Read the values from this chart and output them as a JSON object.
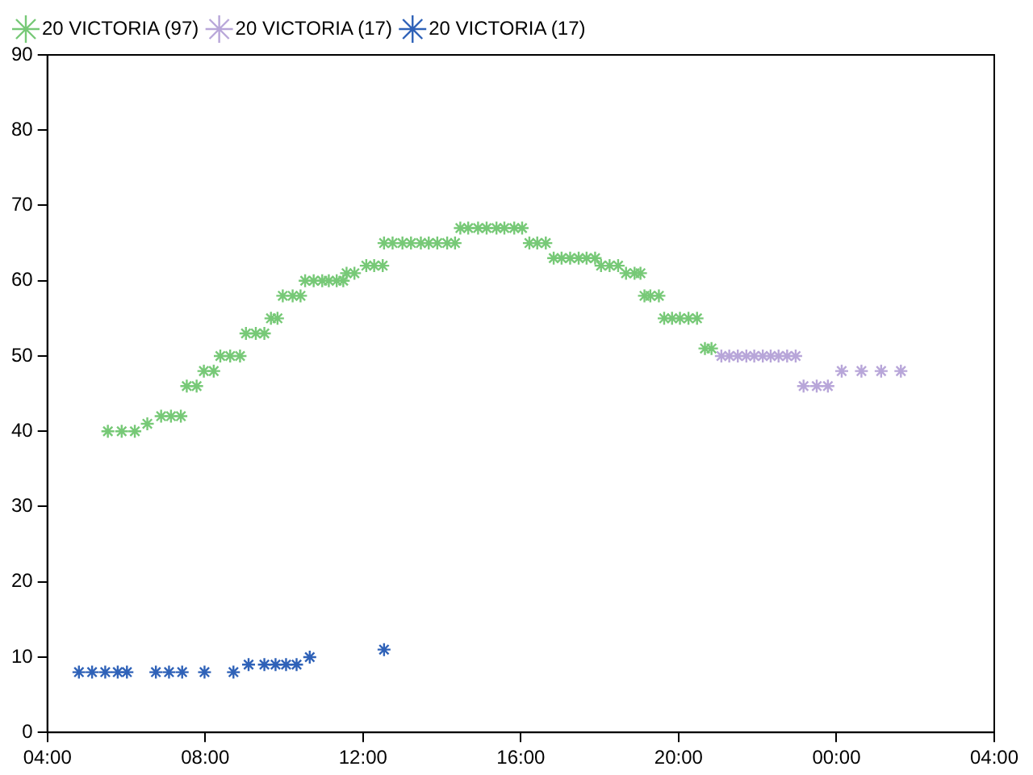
{
  "chart_data": {
    "type": "scatter",
    "marker": "cross",
    "legend": "top left",
    "grid": false,
    "xlim": [
      "--01-01T04:00",
      "--01-02T04:00"
    ],
    "xticks": [
      {
        "value": "--01-01T04:00",
        "label": "04:00"
      },
      {
        "value": "--01-01T08:00",
        "label": "08:00"
      },
      {
        "value": "--01-01T12:00",
        "label": "12:00"
      },
      {
        "value": "--01-01T16:00",
        "label": "16:00"
      },
      {
        "value": "--01-01T20:00",
        "label": "20:00"
      },
      {
        "value": "--01-02T00:00",
        "label": "00:00"
      },
      {
        "value": "--01-02T04:00",
        "label": "04:00"
      }
    ],
    "ylim": [
      0,
      90
    ],
    "yticks": [
      0,
      10,
      20,
      30,
      40,
      50,
      60,
      70,
      80,
      90
    ],
    "series": [
      {
        "name": "20 VICTORIA (97)",
        "color": "#77c977",
        "x": [
          "--01-01T05:32",
          "--01-01T05:53",
          "--01-01T06:13",
          "--01-01T06:32",
          "--01-01T06:53",
          "--01-01T07:08",
          "--01-01T07:23",
          "--01-01T07:32",
          "--01-01T07:47",
          "--01-01T07:58",
          "--01-01T08:13",
          "--01-01T08:23",
          "--01-01T08:38",
          "--01-01T08:53",
          "--01-01T09:02",
          "--01-01T09:17",
          "--01-01T09:30",
          "--01-01T09:40",
          "--01-01T09:50",
          "--01-01T09:58",
          "--01-01T10:13",
          "--01-01T10:25",
          "--01-01T10:32",
          "--01-01T10:45",
          "--01-01T10:58",
          "--01-01T11:08",
          "--01-01T11:20",
          "--01-01T11:30",
          "--01-01T11:35",
          "--01-01T11:47",
          "--01-01T12:05",
          "--01-01T12:17",
          "--01-01T12:30",
          "--01-01T12:32",
          "--01-01T12:45",
          "--01-01T13:00",
          "--01-01T13:13",
          "--01-01T13:28",
          "--01-01T13:40",
          "--01-01T13:53",
          "--01-01T14:08",
          "--01-01T14:20",
          "--01-01T14:28",
          "--01-01T14:40",
          "--01-01T14:55",
          "--01-01T15:08",
          "--01-01T15:23",
          "--01-01T15:35",
          "--01-01T15:50",
          "--01-01T16:02",
          "--01-01T16:13",
          "--01-01T16:25",
          "--01-01T16:38",
          "--01-01T16:50",
          "--01-01T17:02",
          "--01-01T17:15",
          "--01-01T17:28",
          "--01-01T17:40",
          "--01-01T17:53",
          "--01-01T18:02",
          "--01-01T18:15",
          "--01-01T18:28",
          "--01-01T18:40",
          "--01-01T18:53",
          "--01-01T19:02",
          "--01-01T19:08",
          "--01-01T19:17",
          "--01-01T19:30",
          "--01-01T19:38",
          "--01-01T19:50",
          "--01-01T20:02",
          "--01-01T20:15",
          "--01-01T20:28",
          "--01-01T20:40",
          "--01-01T20:50"
        ],
        "values": [
          40,
          40,
          40,
          41,
          42,
          42,
          42,
          46,
          46,
          48,
          48,
          50,
          50,
          50,
          53,
          53,
          53,
          55,
          55,
          58,
          58,
          58,
          60,
          60,
          60,
          60,
          60,
          60,
          61,
          61,
          62,
          62,
          62,
          65,
          65,
          65,
          65,
          65,
          65,
          65,
          65,
          65,
          67,
          67,
          67,
          67,
          67,
          67,
          67,
          67,
          65,
          65,
          65,
          63,
          63,
          63,
          63,
          63,
          63,
          62,
          62,
          62,
          61,
          61,
          61,
          58,
          58,
          58,
          55,
          55,
          55,
          55,
          55,
          51,
          51
        ]
      },
      {
        "name": "20 VICTORIA (17)",
        "color": "#b8a6d9",
        "x": [
          "--01-01T21:05",
          "--01-01T21:17",
          "--01-01T21:30",
          "--01-01T21:43",
          "--01-01T21:55",
          "--01-01T22:08",
          "--01-01T22:20",
          "--01-01T22:32",
          "--01-01T22:45",
          "--01-01T22:58",
          "--01-01T23:10",
          "--01-01T23:30",
          "--01-01T23:47",
          "--01-02T00:08",
          "--01-02T00:38",
          "--01-02T01:08",
          "--01-02T01:38"
        ],
        "values": [
          50,
          50,
          50,
          50,
          50,
          50,
          50,
          50,
          50,
          50,
          46,
          46,
          46,
          48,
          48,
          48,
          48
        ]
      },
      {
        "name": "20 VICTORIA (17)",
        "color": "#2f62b8",
        "x": [
          "--01-01T04:48",
          "--01-01T05:08",
          "--01-01T05:28",
          "--01-01T05:47",
          "--01-01T06:01",
          "--01-01T06:45",
          "--01-01T07:05",
          "--01-01T07:25",
          "--01-01T07:59",
          "--01-01T08:43",
          "--01-01T09:06",
          "--01-01T09:30",
          "--01-01T09:47",
          "--01-01T10:03",
          "--01-01T10:19",
          "--01-01T10:39",
          "--01-01T12:32"
        ],
        "values": [
          8,
          8,
          8,
          8,
          8,
          8,
          8,
          8,
          8,
          8,
          9,
          9,
          9,
          9,
          9,
          10,
          11
        ]
      }
    ]
  }
}
